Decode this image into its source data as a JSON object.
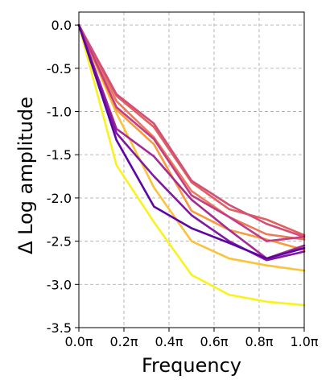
{
  "chart_data": {
    "type": "line",
    "xlabel": "Frequency",
    "ylabel": "Δ Log amplitude",
    "xlim": [
      0.0,
      1.0
    ],
    "ylim": [
      -3.5,
      0.15
    ],
    "x_ticks": [
      0.0,
      0.2,
      0.4,
      0.6,
      0.8,
      1.0
    ],
    "x_tick_labels": [
      "0.0π",
      "0.2π",
      "0.4π",
      "0.6π",
      "0.8π",
      "1.0π"
    ],
    "y_ticks": [
      0.0,
      -0.5,
      -1.0,
      -1.5,
      -2.0,
      -2.5,
      -3.0,
      -3.5
    ],
    "y_tick_labels": [
      "0.0",
      "-0.5",
      "-1.0",
      "-1.5",
      "-2.0",
      "-2.5",
      "-3.0",
      "-3.5"
    ],
    "grid": true,
    "x": [
      0.0,
      0.1667,
      0.3333,
      0.5,
      0.6667,
      0.8333,
      1.0
    ],
    "series": [
      {
        "color": "#f9f21f",
        "values": [
          0.0,
          -1.62,
          -2.28,
          -2.89,
          -3.12,
          -3.2,
          -3.24
        ]
      },
      {
        "color": "#fcc33a",
        "values": [
          0.0,
          -1.02,
          -1.88,
          -2.5,
          -2.7,
          -2.78,
          -2.84
        ]
      },
      {
        "color": "#f89b3e",
        "values": [
          0.0,
          -0.98,
          -1.38,
          -2.15,
          -2.37,
          -2.48,
          -2.6
        ]
      },
      {
        "color": "#ec7a5a",
        "values": [
          0.0,
          -0.88,
          -1.3,
          -1.92,
          -2.22,
          -2.42,
          -2.48
        ]
      },
      {
        "color": "#e0615f",
        "values": [
          0.0,
          -0.82,
          -1.18,
          -1.82,
          -2.13,
          -2.25,
          -2.43
        ]
      },
      {
        "color": "#d24f78",
        "values": [
          0.0,
          -0.8,
          -1.14,
          -1.8,
          -2.08,
          -2.3,
          -2.45
        ]
      },
      {
        "color": "#c23d86",
        "values": [
          0.0,
          -0.95,
          -1.32,
          -1.97,
          -2.22,
          -2.5,
          -2.45
        ]
      },
      {
        "color": "#a52b94",
        "values": [
          0.0,
          -1.2,
          -1.52,
          -2.02,
          -2.37,
          -2.7,
          -2.55
        ]
      },
      {
        "color": "#7f1aa0",
        "values": [
          0.0,
          -1.25,
          -1.75,
          -2.2,
          -2.5,
          -2.72,
          -2.62
        ]
      },
      {
        "color": "#5d05a3",
        "values": [
          0.0,
          -1.33,
          -2.1,
          -2.35,
          -2.52,
          -2.7,
          -2.58
        ]
      }
    ]
  }
}
